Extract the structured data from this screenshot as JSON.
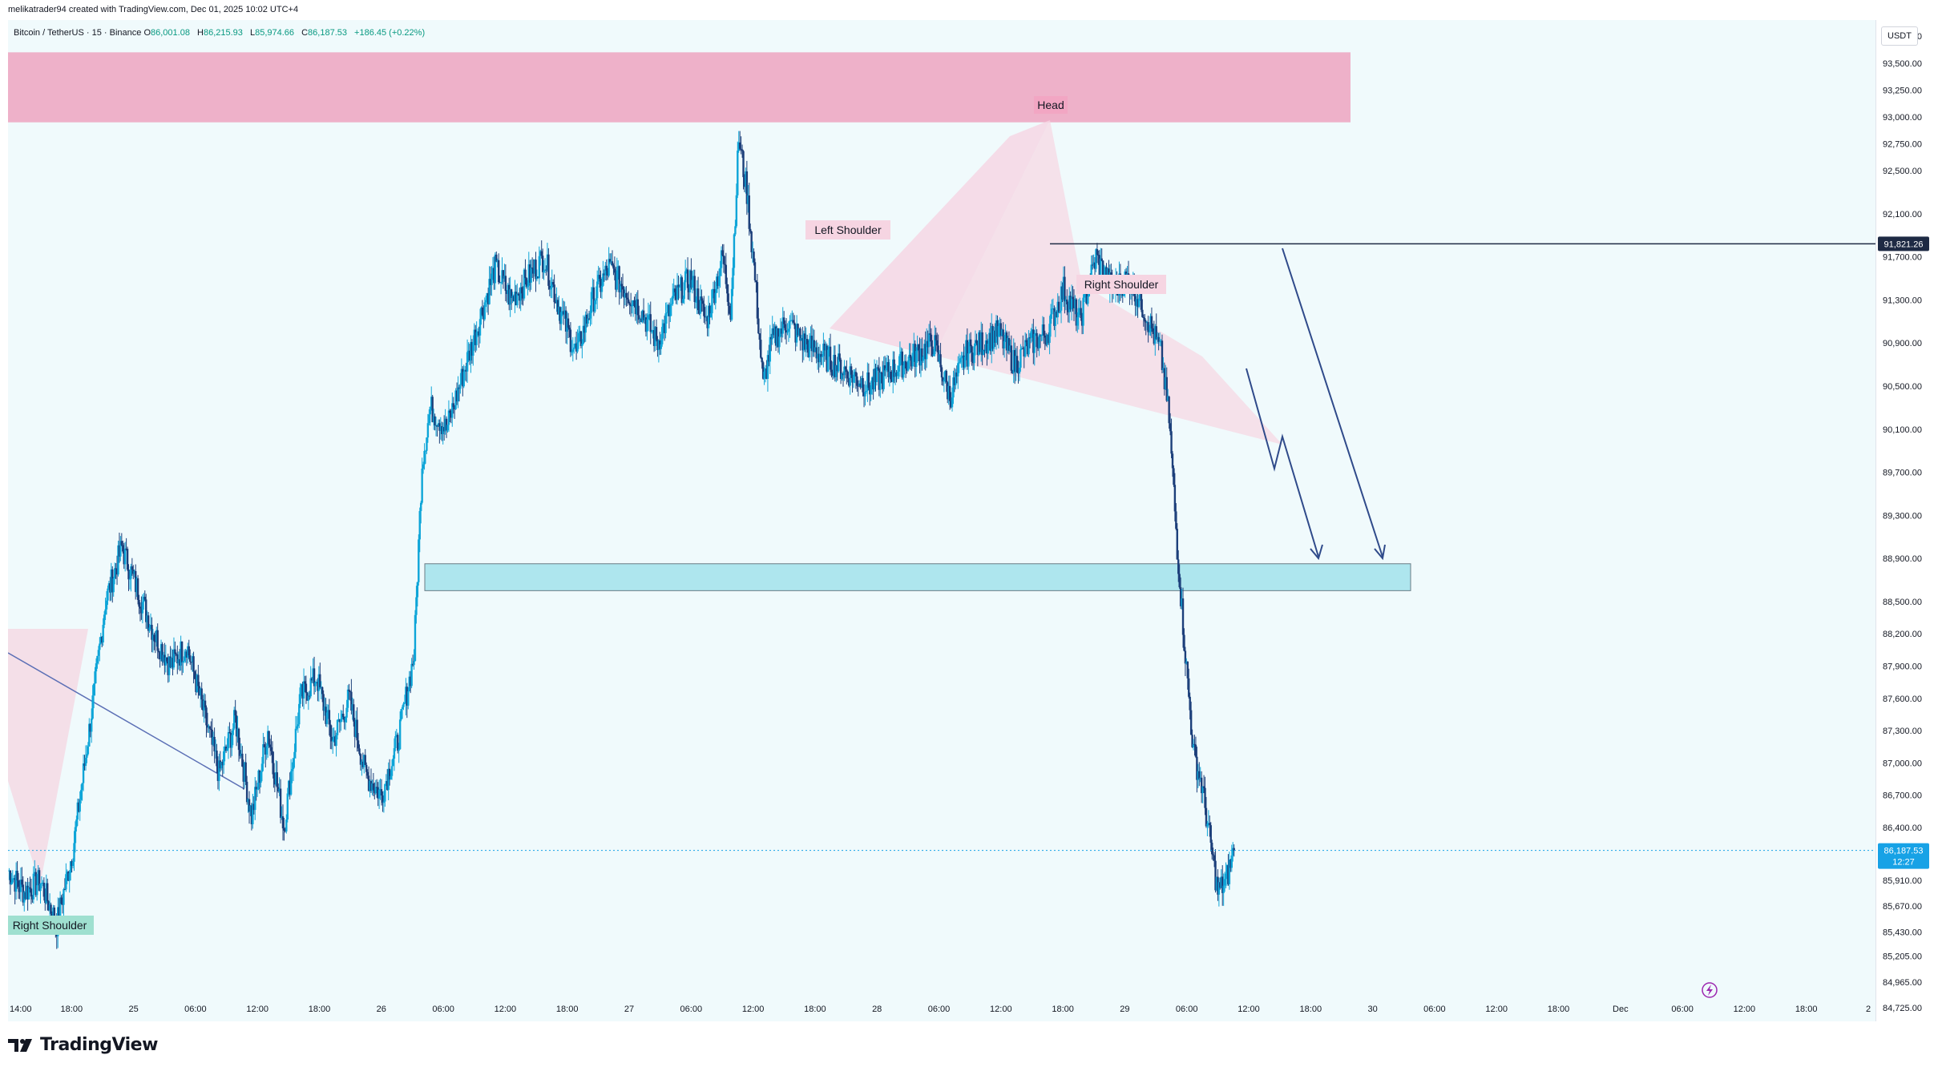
{
  "header": {
    "attribution": "melikatrader94 created with TradingView.com, Dec 01, 2025 10:02 UTC+4",
    "symbol": "Bitcoin / TetherUS · 15 · Binance",
    "open_label": "O",
    "open": "86,001.08",
    "high_label": "H",
    "high": "86,215.93",
    "low_label": "L",
    "low": "85,974.66",
    "close_label": "C",
    "close": "86,187.53",
    "change": "+186.45 (+0.22%)"
  },
  "price_scale": {
    "currency": "USDT",
    "ticks": [
      "93,750.00",
      "93,500.00",
      "93,250.00",
      "93,000.00",
      "92,750.00",
      "92,500.00",
      "92,100.00",
      "91,700.00",
      "91,300.00",
      "90,900.00",
      "90,500.00",
      "90,100.00",
      "89,700.00",
      "89,300.00",
      "88,900.00",
      "88,500.00",
      "88,200.00",
      "87,900.00",
      "87,600.00",
      "87,300.00",
      "87,000.00",
      "86,700.00",
      "86,400.00",
      "85,910.00",
      "85,670.00",
      "85,430.00",
      "85,205.00",
      "84,965.00",
      "84,725.00"
    ],
    "neckline_label": "91,821.26",
    "last_price_label": "86,187.53",
    "countdown_label": "12:27"
  },
  "time_scale": {
    "ticks": [
      "14:00",
      "18:00",
      "25",
      "06:00",
      "12:00",
      "18:00",
      "26",
      "06:00",
      "12:00",
      "18:00",
      "27",
      "06:00",
      "12:00",
      "18:00",
      "28",
      "06:00",
      "12:00",
      "18:00",
      "29",
      "06:00",
      "12:00",
      "18:00",
      "30",
      "06:00",
      "12:00",
      "18:00",
      "Dec",
      "06:00",
      "12:00",
      "18:00",
      "2"
    ]
  },
  "annotations": {
    "head": "Head",
    "left_shoulder": "Left Shoulder",
    "right_shoulder": "Right Shoulder",
    "prev_right_shoulder": "Right Shoulder"
  },
  "chart_data": {
    "type": "candlestick",
    "symbol": "Bitcoin / TetherUS",
    "interval": "15",
    "exchange": "Binance",
    "ylim": [
      84600,
      93900
    ],
    "y_ticks": [
      93750,
      93500,
      93250,
      93000,
      92750,
      92500,
      92100,
      91700,
      91300,
      90900,
      90500,
      90100,
      89700,
      89300,
      88900,
      88500,
      88200,
      87900,
      87600,
      87300,
      87000,
      86700,
      86400,
      85910,
      85670,
      85430,
      85205,
      84965,
      84725
    ],
    "x_ticks": [
      "14:00",
      "18:00",
      "25",
      "06:00",
      "12:00",
      "18:00",
      "26",
      "06:00",
      "12:00",
      "18:00",
      "27",
      "06:00",
      "12:00",
      "18:00",
      "28",
      "06:00",
      "12:00",
      "18:00",
      "29",
      "06:00",
      "12:00",
      "18:00",
      "30",
      "06:00",
      "12:00",
      "18:00",
      "Dec",
      "06:00",
      "12:00",
      "18:00",
      "2"
    ],
    "price_path": [
      {
        "t": 0,
        "p": 86000
      },
      {
        "t": 2,
        "p": 85800
      },
      {
        "t": 4,
        "p": 85900
      },
      {
        "t": 6,
        "p": 85500
      },
      {
        "t": 8,
        "p": 86200
      },
      {
        "t": 10,
        "p": 87300
      },
      {
        "t": 12,
        "p": 88500
      },
      {
        "t": 14,
        "p": 89000
      },
      {
        "t": 16,
        "p": 88600
      },
      {
        "t": 18,
        "p": 88200
      },
      {
        "t": 20,
        "p": 87900
      },
      {
        "t": 22,
        "p": 88100
      },
      {
        "t": 24,
        "p": 87500
      },
      {
        "t": 26,
        "p": 86900
      },
      {
        "t": 28,
        "p": 87400
      },
      {
        "t": 30,
        "p": 86500
      },
      {
        "t": 32,
        "p": 87300
      },
      {
        "t": 34,
        "p": 86400
      },
      {
        "t": 36,
        "p": 87600
      },
      {
        "t": 38,
        "p": 87800
      },
      {
        "t": 40,
        "p": 87200
      },
      {
        "t": 42,
        "p": 87600
      },
      {
        "t": 44,
        "p": 86900
      },
      {
        "t": 46,
        "p": 86700
      },
      {
        "t": 48,
        "p": 87200
      },
      {
        "t": 50,
        "p": 88000
      },
      {
        "t": 51,
        "p": 89800
      },
      {
        "t": 52,
        "p": 90300
      },
      {
        "t": 54,
        "p": 90100
      },
      {
        "t": 56,
        "p": 90600
      },
      {
        "t": 58,
        "p": 91100
      },
      {
        "t": 60,
        "p": 91600
      },
      {
        "t": 62,
        "p": 91300
      },
      {
        "t": 64,
        "p": 91500
      },
      {
        "t": 66,
        "p": 91700
      },
      {
        "t": 68,
        "p": 91200
      },
      {
        "t": 70,
        "p": 90800
      },
      {
        "t": 72,
        "p": 91300
      },
      {
        "t": 74,
        "p": 91600
      },
      {
        "t": 76,
        "p": 91400
      },
      {
        "t": 78,
        "p": 91200
      },
      {
        "t": 80,
        "p": 90900
      },
      {
        "t": 82,
        "p": 91300
      },
      {
        "t": 84,
        "p": 91500
      },
      {
        "t": 86,
        "p": 91100
      },
      {
        "t": 88,
        "p": 91700
      },
      {
        "t": 89,
        "p": 91200
      },
      {
        "t": 90,
        "p": 92800
      },
      {
        "t": 91,
        "p": 92300
      },
      {
        "t": 92,
        "p": 91500
      },
      {
        "t": 93,
        "p": 90500
      },
      {
        "t": 94,
        "p": 90900
      },
      {
        "t": 96,
        "p": 91100
      },
      {
        "t": 98,
        "p": 90900
      },
      {
        "t": 100,
        "p": 90800
      },
      {
        "t": 102,
        "p": 90700
      },
      {
        "t": 104,
        "p": 90600
      },
      {
        "t": 106,
        "p": 90500
      },
      {
        "t": 108,
        "p": 90600
      },
      {
        "t": 110,
        "p": 90700
      },
      {
        "t": 112,
        "p": 90800
      },
      {
        "t": 114,
        "p": 90900
      },
      {
        "t": 116,
        "p": 90400
      },
      {
        "t": 118,
        "p": 90800
      },
      {
        "t": 120,
        "p": 90900
      },
      {
        "t": 122,
        "p": 91000
      },
      {
        "t": 124,
        "p": 90700
      },
      {
        "t": 126,
        "p": 90900
      },
      {
        "t": 128,
        "p": 91000
      },
      {
        "t": 130,
        "p": 91400
      },
      {
        "t": 132,
        "p": 91100
      },
      {
        "t": 134,
        "p": 91700
      },
      {
        "t": 136,
        "p": 91400
      },
      {
        "t": 138,
        "p": 91500
      },
      {
        "t": 140,
        "p": 91200
      },
      {
        "t": 142,
        "p": 90800
      },
      {
        "t": 143,
        "p": 90200
      },
      {
        "t": 144,
        "p": 89000
      },
      {
        "t": 145,
        "p": 88000
      },
      {
        "t": 146,
        "p": 87100
      },
      {
        "t": 147,
        "p": 86800
      },
      {
        "t": 148,
        "p": 86300
      },
      {
        "t": 149,
        "p": 85800
      },
      {
        "t": 150,
        "p": 85900
      },
      {
        "t": 151,
        "p": 86187
      }
    ],
    "zones": [
      {
        "name": "supply",
        "from": 92950,
        "to": 93600,
        "color": "#eda3bf"
      },
      {
        "name": "target",
        "from": 88600,
        "to": 88850,
        "color": "#aee6ee"
      }
    ],
    "neckline": 91821.26,
    "last_price": 86187.53
  },
  "colors": {
    "background": "#f0fafc",
    "candle_up": "#0ea5d8",
    "candle_down": "#1c3f7a",
    "accent": "#2962ff",
    "price_badge": "#17a2e6",
    "supply_zone": "#eda3bf",
    "target_zone": "#aee6ee"
  }
}
